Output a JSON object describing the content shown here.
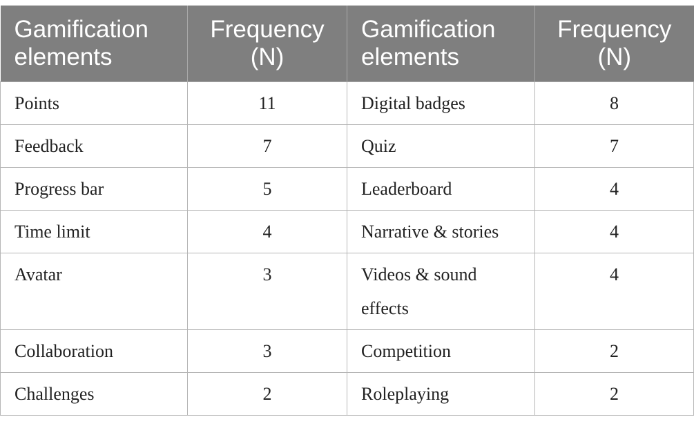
{
  "table": {
    "headers": [
      "Gamification elements",
      "Frequency (N)",
      "Gamification elements",
      "Frequency (N)"
    ],
    "rows": [
      [
        "Points",
        "11",
        "Digital badges",
        "8"
      ],
      [
        "Feedback",
        "7",
        "Quiz",
        "7"
      ],
      [
        "Progress bar",
        "5",
        "Leaderboard",
        "4"
      ],
      [
        "Time limit",
        "4",
        "Narrative & stories",
        "4"
      ],
      [
        "Avatar",
        "3",
        "Videos & sound effects",
        "4"
      ],
      [
        "Collaboration",
        "3",
        "Competition",
        "2"
      ],
      [
        "Challenges",
        "2",
        "Roleplaying",
        "2"
      ]
    ]
  }
}
